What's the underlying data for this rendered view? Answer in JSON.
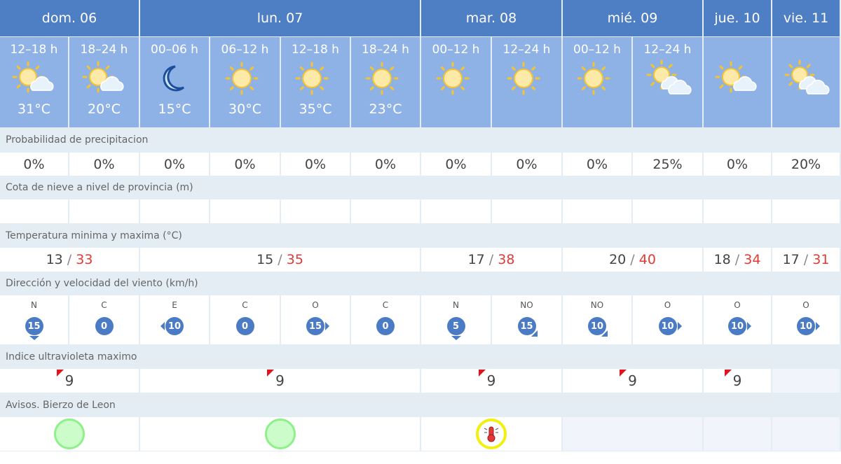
{
  "days": [
    {
      "label": "dom. 06",
      "span": 2
    },
    {
      "label": "lun. 07",
      "span": 4
    },
    {
      "label": "mar. 08",
      "span": 2
    },
    {
      "label": "mié. 09",
      "span": 2
    },
    {
      "label": "jue. 10",
      "span": 1
    },
    {
      "label": "vie. 11",
      "span": 1
    }
  ],
  "periods": [
    {
      "time": "12–18 h",
      "icon": "sun-cloud",
      "temp": "31°C"
    },
    {
      "time": "18–24 h",
      "icon": "sun-cloud",
      "temp": "20°C"
    },
    {
      "time": "00–06 h",
      "icon": "moon",
      "temp": "15°C"
    },
    {
      "time": "06–12 h",
      "icon": "sun",
      "temp": "30°C"
    },
    {
      "time": "12–18 h",
      "icon": "sun",
      "temp": "35°C"
    },
    {
      "time": "18–24 h",
      "icon": "sun",
      "temp": "23°C"
    },
    {
      "time": "00–12 h",
      "icon": "sun",
      "temp": ""
    },
    {
      "time": "12–24 h",
      "icon": "sun",
      "temp": ""
    },
    {
      "time": "00–12 h",
      "icon": "sun",
      "temp": ""
    },
    {
      "time": "12–24 h",
      "icon": "sun-clouds",
      "temp": ""
    },
    {
      "time": "",
      "icon": "sun-cloud",
      "temp": ""
    },
    {
      "time": "",
      "icon": "sun-clouds",
      "temp": ""
    }
  ],
  "labels": {
    "precip": "Probabilidad de precipitacion",
    "snow": "Cota de nieve a nivel de provincia (m)",
    "temp": "Temperatura minima y maxima (°C)",
    "wind": "Dirección y velocidad del viento (km/h)",
    "uv": "Indice ultravioleta maximo",
    "avisos": "Avisos. Bierzo de Leon"
  },
  "precip": [
    "0%",
    "0%",
    "0%",
    "0%",
    "0%",
    "0%",
    "0%",
    "0%",
    "0%",
    "25%",
    "0%",
    "20%"
  ],
  "temps": [
    {
      "min": "13",
      "max": "33"
    },
    {
      "min": "15",
      "max": "35"
    },
    {
      "min": "17",
      "max": "38"
    },
    {
      "min": "20",
      "max": "40"
    },
    {
      "min": "18",
      "max": "34"
    },
    {
      "min": "17",
      "max": "31"
    }
  ],
  "wind": [
    {
      "dir": "N",
      "speed": "15"
    },
    {
      "dir": "C",
      "speed": "0"
    },
    {
      "dir": "E",
      "speed": "10"
    },
    {
      "dir": "C",
      "speed": "0"
    },
    {
      "dir": "O",
      "speed": "15"
    },
    {
      "dir": "C",
      "speed": "0"
    },
    {
      "dir": "N",
      "speed": "5"
    },
    {
      "dir": "NO",
      "speed": "15"
    },
    {
      "dir": "NO",
      "speed": "10"
    },
    {
      "dir": "O",
      "speed": "10"
    },
    {
      "dir": "O",
      "speed": "10"
    },
    {
      "dir": "O",
      "speed": "10"
    }
  ],
  "uv": [
    "9",
    "9",
    "9",
    "9",
    "9",
    ""
  ],
  "avisos": [
    "green",
    "green",
    "heat-warning",
    "",
    "",
    ""
  ],
  "colors": {
    "header": "#4e7ec4",
    "periods": "#8fb2e6",
    "max_temp": "#e53935",
    "uv_flag": "#e0141e",
    "aviso_green": "#8ef08a",
    "aviso_yellow": "#f1f00e"
  }
}
